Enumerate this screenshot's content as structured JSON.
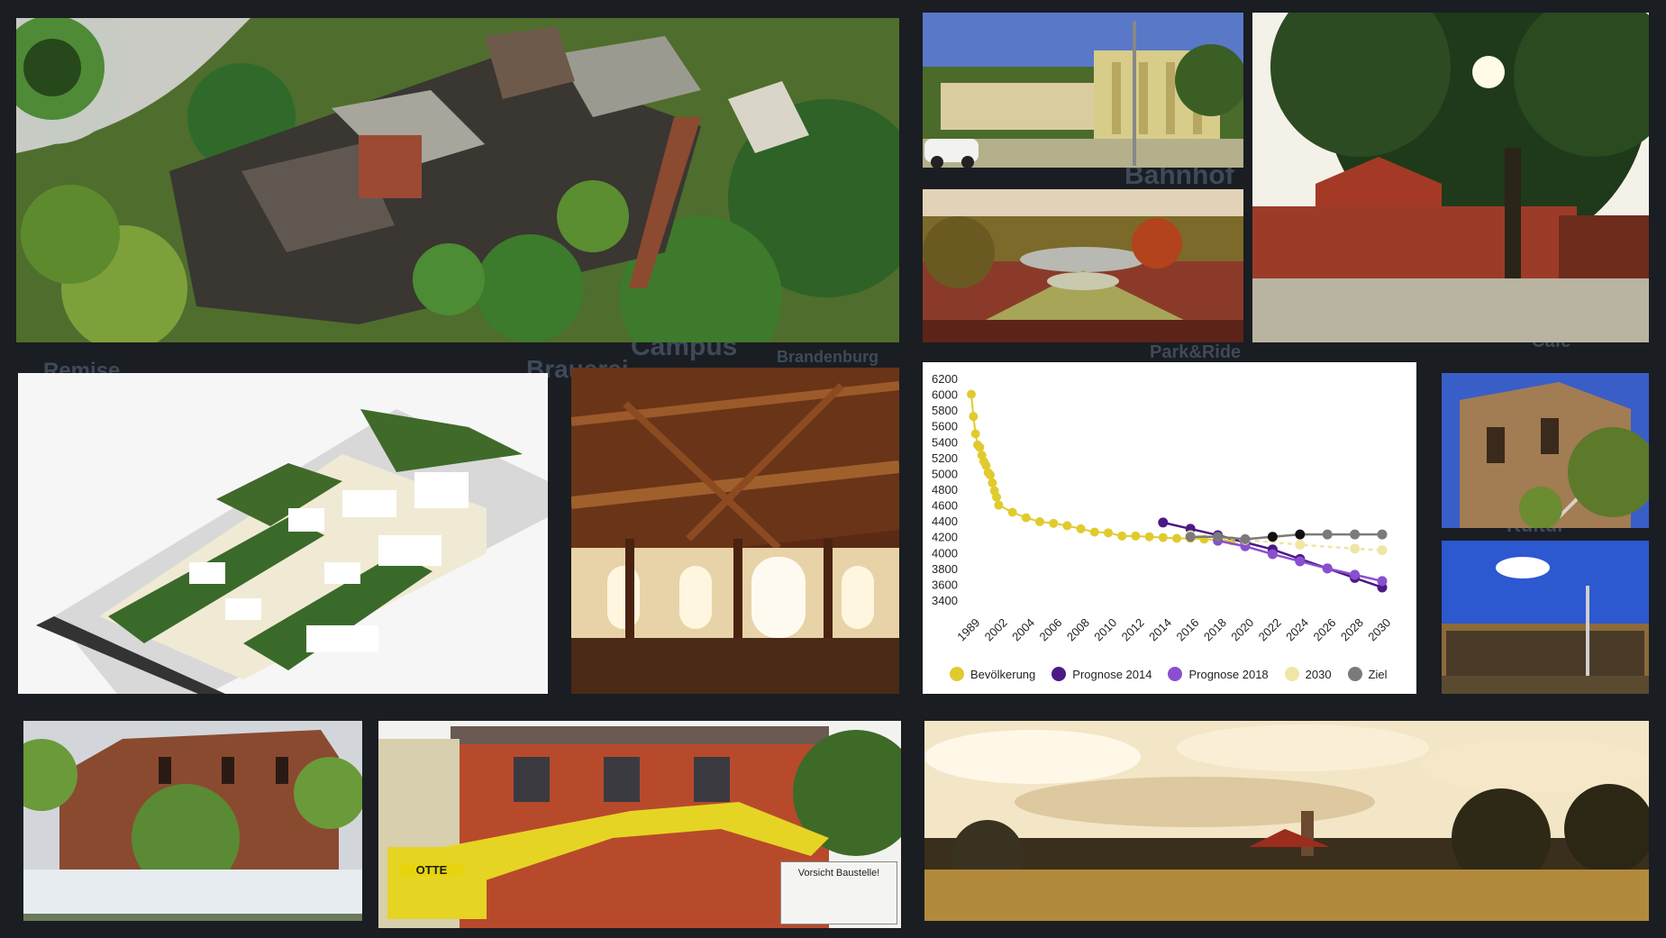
{
  "background": {
    "words": [
      "Remise",
      "Brauerei",
      "Campus",
      "Brandenburg",
      "Park&Ride",
      "Bahnhof",
      "Kultur",
      "Café"
    ]
  },
  "photos": [
    {
      "name": "aerial-ruins-photo"
    },
    {
      "name": "modern-building-photo"
    },
    {
      "name": "park-pond-photo"
    },
    {
      "name": "station-tree-photo"
    },
    {
      "name": "site-model-render"
    },
    {
      "name": "timber-hall-interior-photo"
    },
    {
      "name": "brick-house-staircase-photo"
    },
    {
      "name": "industrial-hall-photo"
    },
    {
      "name": "fenced-brick-building-photo"
    },
    {
      "name": "construction-excavator-photo"
    },
    {
      "name": "rural-landscape-photo"
    }
  ],
  "photo_text": {
    "excavator_brand": "OTTE",
    "sign_text": "Vorsicht Baustelle!"
  },
  "colors": {
    "bevoelkerung": "#e0cb2e",
    "prognose2014": "#4b1a86",
    "prognose2018": "#8a4fd0",
    "y2030": "#efe6a6",
    "ziel": "#7a7a7a"
  },
  "chart_data": {
    "type": "line",
    "title": "",
    "xlabel": "",
    "ylabel": "",
    "ylim": [
      3400,
      6200
    ],
    "yticks": [
      "6200",
      "6000",
      "5800",
      "5600",
      "5400",
      "5200",
      "5000",
      "4800",
      "4600",
      "4400",
      "4200",
      "4000",
      "3800",
      "3600",
      "3400"
    ],
    "xticks": [
      "1989",
      "2002",
      "2004",
      "2006",
      "2008",
      "2010",
      "2012",
      "2014",
      "2016",
      "2018",
      "2020",
      "2022",
      "2024",
      "2026",
      "2028",
      "2030"
    ],
    "legend_position": "bottom",
    "series": [
      {
        "name": "Bevölkerung",
        "x": [
          1989,
          1990,
          1991,
          1992,
          1993,
          1994,
          1995,
          1996,
          1997,
          1998,
          1999,
          2000,
          2001,
          2002,
          2003,
          2004,
          2005,
          2006,
          2007,
          2008,
          2009,
          2010,
          2011,
          2012,
          2013,
          2014,
          2015,
          2016,
          2017,
          2018,
          2019,
          2020
        ],
        "y": [
          6000,
          5720,
          5500,
          5360,
          5330,
          5230,
          5150,
          5100,
          5010,
          4980,
          4880,
          4780,
          4700,
          4600,
          4510,
          4440,
          4390,
          4370,
          4340,
          4300,
          4260,
          4250,
          4210,
          4210,
          4200,
          4190,
          4180,
          4180,
          4170,
          4160,
          4150,
          4150
        ]
      },
      {
        "name": "Prognose 2014",
        "x": [
          2014,
          2016,
          2018,
          2020,
          2022,
          2024,
          2026,
          2028,
          2030
        ],
        "y": [
          4380,
          4300,
          4220,
          4130,
          4040,
          3920,
          3800,
          3680,
          3560
        ]
      },
      {
        "name": "Prognose 2018",
        "x": [
          2018,
          2020,
          2022,
          2024,
          2026,
          2028,
          2030
        ],
        "y": [
          4150,
          4080,
          3980,
          3890,
          3800,
          3720,
          3640
        ]
      },
      {
        "name": "2030",
        "x": [
          2016,
          2020,
          2024,
          2028,
          2030
        ],
        "y": [
          4220,
          4160,
          4100,
          4050,
          4030
        ]
      },
      {
        "name": "Ziel",
        "x": [
          2016,
          2018,
          2020,
          2022,
          2024,
          2026,
          2028,
          2030
        ],
        "y": [
          4200,
          4200,
          4170,
          4200,
          4230,
          4230,
          4230,
          4230
        ]
      }
    ]
  }
}
